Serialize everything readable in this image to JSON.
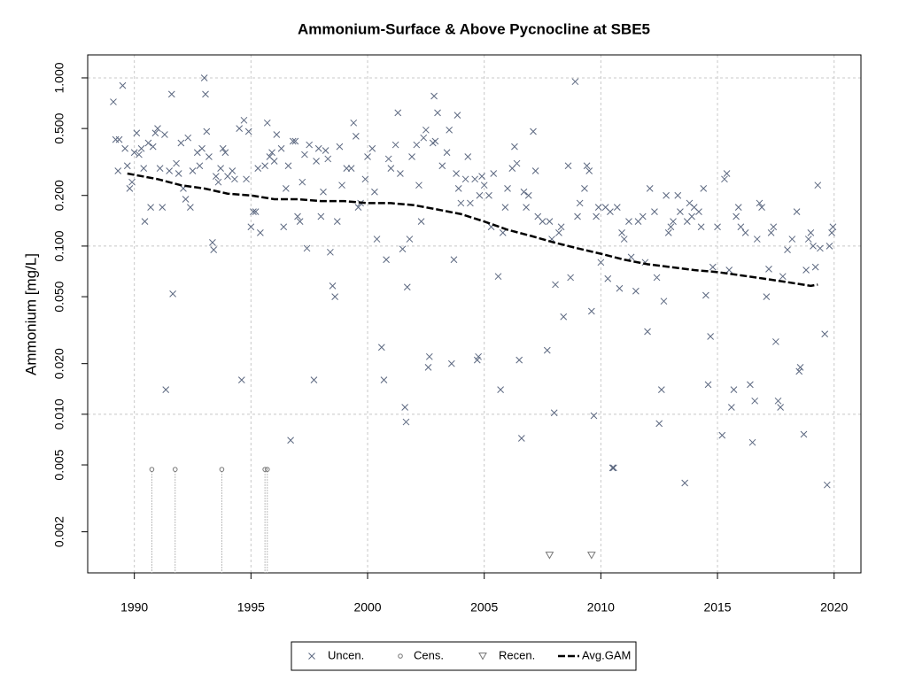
{
  "chart_data": {
    "type": "scatter",
    "title": "Ammonium-Surface & Above Pycnocline at SBE5",
    "y_label": "Ammonium [mg/L]",
    "log_y": true,
    "grid": true,
    "legend": "bottom",
    "xlim": [
      1988,
      2021.15
    ],
    "xticks": [
      1990,
      1995,
      2000,
      2005,
      2010,
      2015,
      2020
    ],
    "ylim": [
      0.00114,
      1.37
    ],
    "yticks": [
      {
        "value": 1,
        "label": "1.000"
      },
      {
        "value": 0.5,
        "label": "0.500"
      },
      {
        "value": 0.2,
        "label": "0.200"
      },
      {
        "value": 0.1,
        "label": "0.100"
      },
      {
        "value": 0.05,
        "label": "0.050"
      },
      {
        "value": 0.02,
        "label": "0.020"
      },
      {
        "value": 0.01,
        "label": "0.010"
      },
      {
        "value": 0.005,
        "label": "0.005"
      },
      {
        "value": 0.002,
        "label": "0.002"
      }
    ],
    "series": [
      {
        "name": "Uncen.",
        "color": "#5c6880",
        "marker": "x",
        "x": [
          1989.1,
          1989.2,
          1989.3,
          1989.35,
          1989.5,
          1989.6,
          1989.7,
          1989.8,
          1989.9,
          1990.0,
          1990.1,
          1990.2,
          1990.3,
          1990.4,
          1990.45,
          1990.6,
          1990.7,
          1990.8,
          1990.9,
          1991.0,
          1991.1,
          1991.2,
          1991.3,
          1991.35,
          1991.5,
          1991.6,
          1991.65,
          1991.8,
          1991.9,
          1992.0,
          1992.1,
          1992.2,
          1992.3,
          1992.4,
          1992.5,
          1992.7,
          1992.8,
          1992.9,
          1993.0,
          1993.05,
          1993.1,
          1993.2,
          1993.35,
          1993.4,
          1993.5,
          1993.6,
          1993.7,
          1993.8,
          1993.9,
          1994.0,
          1994.2,
          1994.3,
          1994.5,
          1994.6,
          1994.7,
          1994.8,
          1994.9,
          1995.0,
          1995.1,
          1995.2,
          1995.3,
          1995.4,
          1995.6,
          1995.7,
          1995.8,
          1995.9,
          1996.0,
          1996.1,
          1996.3,
          1996.4,
          1996.5,
          1996.6,
          1996.7,
          1996.8,
          1996.9,
          1997.0,
          1997.1,
          1997.2,
          1997.3,
          1997.4,
          1997.5,
          1997.7,
          1997.8,
          1997.9,
          1998.0,
          1998.1,
          1998.2,
          1998.3,
          1998.4,
          1998.5,
          1998.6,
          1998.7,
          1998.8,
          1998.9,
          1999.1,
          1999.3,
          1999.4,
          1999.5,
          1999.6,
          1999.7,
          1999.9,
          2000.0,
          2000.2,
          2000.3,
          2000.4,
          2000.6,
          2000.7,
          2000.8,
          2000.9,
          2001.0,
          2001.2,
          2001.3,
          2001.4,
          2001.5,
          2001.6,
          2001.65,
          2001.7,
          2001.8,
          2001.9,
          2002.1,
          2002.2,
          2002.3,
          2002.4,
          2002.5,
          2002.6,
          2002.65,
          2002.8,
          2002.85,
          2002.9,
          2003.0,
          2003.2,
          2003.4,
          2003.5,
          2003.6,
          2003.7,
          2003.8,
          2003.85,
          2003.9,
          2004.0,
          2004.2,
          2004.3,
          2004.4,
          2004.6,
          2004.7,
          2004.75,
          2004.8,
          2004.9,
          2005.0,
          2005.2,
          2005.3,
          2005.4,
          2005.6,
          2005.7,
          2005.8,
          2005.9,
          2006.0,
          2006.2,
          2006.3,
          2006.4,
          2006.5,
          2006.6,
          2006.7,
          2006.8,
          2006.9,
          2007.1,
          2007.2,
          2007.3,
          2007.5,
          2007.7,
          2007.8,
          2007.9,
          2008.0,
          2008.05,
          2008.2,
          2008.3,
          2008.4,
          2008.6,
          2008.7,
          2008.9,
          2009.0,
          2009.1,
          2009.3,
          2009.4,
          2009.5,
          2009.6,
          2009.7,
          2009.8,
          2009.9,
          2010.0,
          2010.2,
          2010.3,
          2010.4,
          2010.5,
          2010.55,
          2010.7,
          2010.8,
          2010.9,
          2011.0,
          2011.2,
          2011.3,
          2011.5,
          2011.6,
          2011.8,
          2011.9,
          2012.0,
          2012.1,
          2012.3,
          2012.4,
          2012.5,
          2012.6,
          2012.7,
          2012.8,
          2012.9,
          2013.0,
          2013.1,
          2013.3,
          2013.4,
          2013.6,
          2013.7,
          2013.8,
          2013.9,
          2014.0,
          2014.2,
          2014.3,
          2014.4,
          2014.5,
          2014.6,
          2014.7,
          2014.8,
          2015.0,
          2015.2,
          2015.3,
          2015.4,
          2015.5,
          2015.6,
          2015.7,
          2015.8,
          2015.9,
          2016.0,
          2016.2,
          2016.4,
          2016.5,
          2016.6,
          2016.7,
          2016.8,
          2016.9,
          2017.1,
          2017.2,
          2017.3,
          2017.4,
          2017.5,
          2017.6,
          2017.7,
          2017.8,
          2018.0,
          2018.2,
          2018.4,
          2018.5,
          2018.55,
          2018.7,
          2018.8,
          2018.9,
          2019.0,
          2019.1,
          2019.2,
          2019.3,
          2019.4,
          2019.6,
          2019.7,
          2019.8,
          2019.9,
          2019.95
        ],
        "values": [
          0.72,
          0.43,
          0.28,
          0.43,
          0.9,
          0.38,
          0.3,
          0.22,
          0.24,
          0.36,
          0.47,
          0.35,
          0.38,
          0.29,
          0.14,
          0.41,
          0.17,
          0.39,
          0.47,
          0.5,
          0.29,
          0.17,
          0.46,
          0.014,
          0.28,
          0.8,
          0.052,
          0.31,
          0.27,
          0.41,
          0.22,
          0.19,
          0.44,
          0.17,
          0.28,
          0.36,
          0.3,
          0.38,
          1.0,
          0.8,
          0.48,
          0.34,
          0.105,
          0.095,
          0.26,
          0.24,
          0.29,
          0.38,
          0.36,
          0.26,
          0.28,
          0.25,
          0.5,
          0.016,
          0.56,
          0.25,
          0.48,
          0.13,
          0.16,
          0.16,
          0.29,
          0.12,
          0.3,
          0.54,
          0.34,
          0.36,
          0.32,
          0.46,
          0.38,
          0.13,
          0.22,
          0.3,
          0.007,
          0.42,
          0.42,
          0.15,
          0.14,
          0.24,
          0.35,
          0.097,
          0.4,
          0.016,
          0.32,
          0.38,
          0.15,
          0.21,
          0.37,
          0.33,
          0.092,
          0.058,
          0.05,
          0.14,
          0.39,
          0.23,
          0.29,
          0.29,
          0.54,
          0.45,
          0.17,
          0.18,
          0.25,
          0.34,
          0.38,
          0.21,
          0.11,
          0.025,
          0.016,
          0.083,
          0.33,
          0.29,
          0.4,
          0.62,
          0.27,
          0.096,
          0.011,
          0.009,
          0.057,
          0.11,
          0.34,
          0.4,
          0.23,
          0.14,
          0.44,
          0.49,
          0.019,
          0.022,
          0.41,
          0.78,
          0.42,
          0.62,
          0.3,
          0.36,
          0.49,
          0.02,
          0.083,
          0.27,
          0.6,
          0.22,
          0.18,
          0.25,
          0.34,
          0.18,
          0.25,
          0.021,
          0.022,
          0.2,
          0.26,
          0.23,
          0.2,
          0.13,
          0.27,
          0.066,
          0.014,
          0.12,
          0.17,
          0.22,
          0.29,
          0.39,
          0.31,
          0.021,
          0.0072,
          0.21,
          0.17,
          0.2,
          0.48,
          0.28,
          0.15,
          0.14,
          0.024,
          0.14,
          0.11,
          0.0102,
          0.059,
          0.12,
          0.13,
          0.038,
          0.3,
          0.065,
          0.95,
          0.15,
          0.18,
          0.22,
          0.3,
          0.28,
          0.041,
          0.0098,
          0.15,
          0.17,
          0.08,
          0.17,
          0.064,
          0.16,
          0.0048,
          0.0048,
          0.17,
          0.056,
          0.12,
          0.11,
          0.14,
          0.086,
          0.054,
          0.14,
          0.15,
          0.08,
          0.031,
          0.22,
          0.16,
          0.065,
          0.0088,
          0.014,
          0.047,
          0.2,
          0.12,
          0.13,
          0.14,
          0.2,
          0.16,
          0.0039,
          0.14,
          0.18,
          0.15,
          0.17,
          0.16,
          0.13,
          0.22,
          0.051,
          0.015,
          0.029,
          0.075,
          0.13,
          0.0075,
          0.25,
          0.27,
          0.072,
          0.011,
          0.014,
          0.15,
          0.17,
          0.13,
          0.12,
          0.015,
          0.0068,
          0.012,
          0.11,
          0.18,
          0.17,
          0.05,
          0.073,
          0.12,
          0.13,
          0.027,
          0.012,
          0.011,
          0.066,
          0.095,
          0.11,
          0.16,
          0.018,
          0.019,
          0.0076,
          0.072,
          0.11,
          0.12,
          0.1,
          0.075,
          0.23,
          0.097,
          0.03,
          0.0038,
          0.1,
          0.12,
          0.13
        ]
      },
      {
        "name": "Cens.",
        "color": "#777777",
        "marker": "o",
        "drop_lines": true,
        "x": [
          1990.75,
          1991.75,
          1993.75,
          1995.6,
          1995.7
        ],
        "values": [
          0.0047,
          0.0047,
          0.0047,
          0.0047,
          0.0047
        ]
      },
      {
        "name": "Recen.",
        "color": "#777777",
        "marker": "v",
        "x": [
          2007.8,
          2009.6
        ],
        "values": [
          0.00145,
          0.00145
        ]
      },
      {
        "name": "Avg.GAM",
        "color": "#000000",
        "marker": "line",
        "x": [
          1989.7,
          1991,
          1992,
          1993,
          1994,
          1995,
          1996,
          1997,
          1998,
          1999,
          2000,
          2001,
          2002,
          2003,
          2004,
          2005,
          2006,
          2007,
          2008,
          2009,
          2010,
          2011,
          2012,
          2013,
          2014,
          2015,
          2016,
          2017,
          2018,
          2019,
          2019.3
        ],
        "values": [
          0.27,
          0.25,
          0.23,
          0.22,
          0.205,
          0.2,
          0.19,
          0.19,
          0.185,
          0.185,
          0.18,
          0.18,
          0.175,
          0.165,
          0.155,
          0.14,
          0.125,
          0.115,
          0.105,
          0.097,
          0.09,
          0.083,
          0.078,
          0.075,
          0.072,
          0.07,
          0.067,
          0.064,
          0.061,
          0.058,
          0.059
        ]
      }
    ]
  }
}
